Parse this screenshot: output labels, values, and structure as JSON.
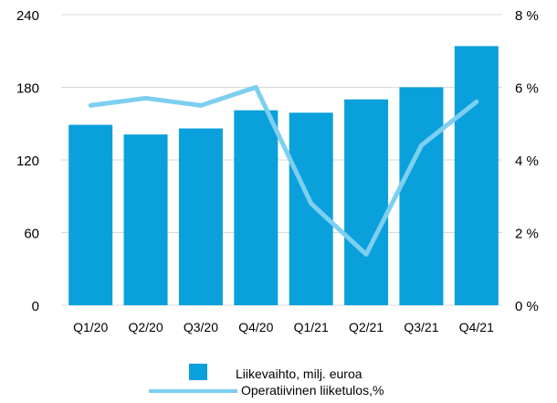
{
  "chart_data": {
    "type": "bar",
    "categories": [
      "Q1/20",
      "Q2/20",
      "Q3/20",
      "Q4/20",
      "Q1/21",
      "Q2/21",
      "Q3/21",
      "Q4/21"
    ],
    "series": [
      {
        "name": "Liikevaihto, milj. euroa",
        "type": "bar",
        "axis": "left",
        "color": "#0aa0dc",
        "values": [
          149,
          141,
          146,
          161,
          159,
          170,
          180,
          214
        ]
      },
      {
        "name": "Operatiivinen liiketulos,%",
        "type": "line",
        "axis": "right",
        "color": "#7dcfef",
        "values": [
          5.5,
          5.7,
          5.5,
          6.0,
          2.8,
          1.4,
          4.4,
          5.6
        ]
      }
    ],
    "y_left": {
      "ticks": [
        "0",
        "60",
        "120",
        "180",
        "240"
      ],
      "range": [
        0,
        240
      ]
    },
    "y_right": {
      "ticks": [
        "0 %",
        "2 %",
        "4 %",
        "6 %",
        "8 %"
      ],
      "range": [
        0,
        8
      ]
    },
    "grid": true,
    "legend_position": "bottom"
  }
}
